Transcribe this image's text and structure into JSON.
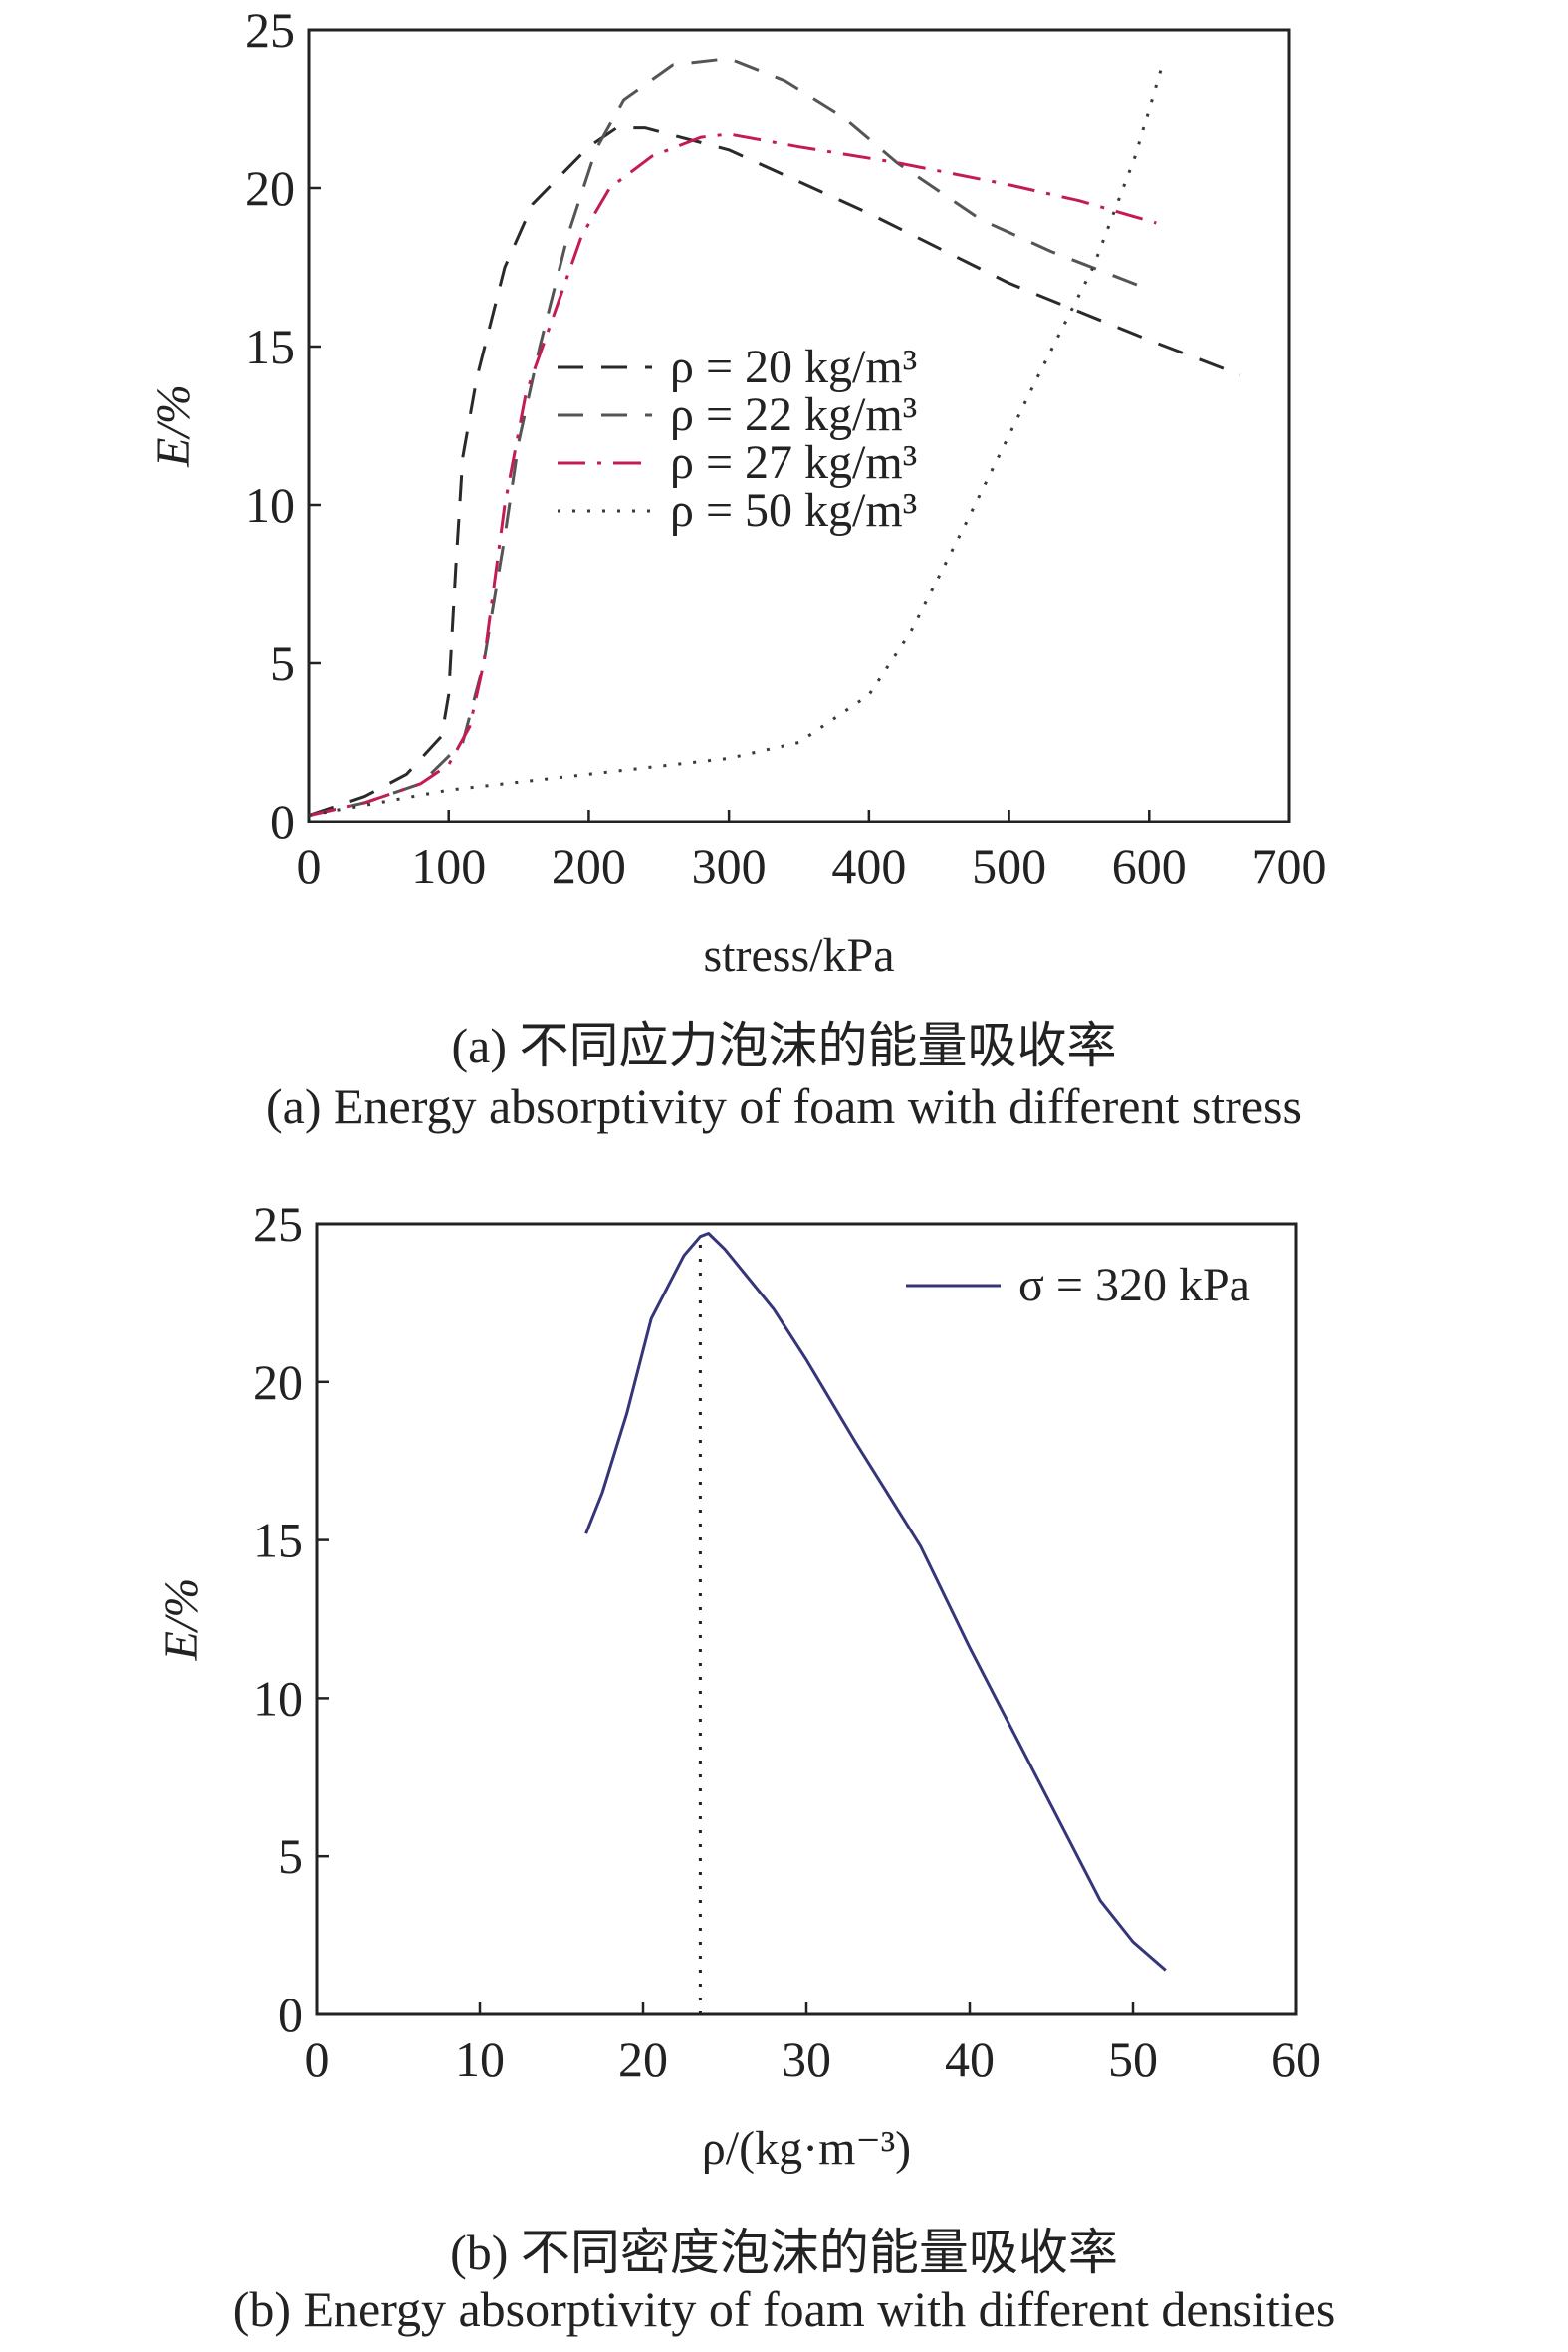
{
  "chart_data": [
    {
      "type": "line",
      "panel": "a",
      "xlabel": "stress/kPa",
      "ylabel": "E/%",
      "xlim": [
        0,
        700
      ],
      "ylim": [
        0,
        25
      ],
      "xticks": [
        "0",
        "100",
        "200",
        "300",
        "400",
        "500",
        "600",
        "700"
      ],
      "yticks": [
        "0",
        "5",
        "10",
        "15",
        "20",
        "25"
      ],
      "grid": false,
      "legend_position": "center",
      "caption_cn": "(a) 不同应力泡沫的能量吸收率",
      "caption_en": "(a) Energy absorptivity of foam with different stress",
      "series": [
        {
          "name": "ρ = 20 kg/m³",
          "style": "dashed",
          "color": "#2a2a2a",
          "points": [
            [
              0,
              0.2
            ],
            [
              40,
              0.8
            ],
            [
              70,
              1.5
            ],
            [
              95,
              2.7
            ],
            [
              100,
              4
            ],
            [
              105,
              8
            ],
            [
              110,
              11.5
            ],
            [
              120,
              14
            ],
            [
              140,
              17.5
            ],
            [
              160,
              19.5
            ],
            [
              200,
              21.3
            ],
            [
              220,
              21.9
            ],
            [
              240,
              21.9
            ],
            [
              300,
              21.2
            ],
            [
              400,
              19.2
            ],
            [
              500,
              17
            ],
            [
              600,
              15.2
            ],
            [
              665,
              14.1
            ]
          ]
        },
        {
          "name": "ρ = 22 kg/m³",
          "style": "dashed",
          "color": "#555555",
          "points": [
            [
              0,
              0.2
            ],
            [
              40,
              0.6
            ],
            [
              80,
              1.2
            ],
            [
              110,
              2.5
            ],
            [
              125,
              5
            ],
            [
              140,
              9
            ],
            [
              150,
              12
            ],
            [
              165,
              15
            ],
            [
              185,
              18.5
            ],
            [
              205,
              21.2
            ],
            [
              225,
              22.8
            ],
            [
              260,
              23.9
            ],
            [
              300,
              24.1
            ],
            [
              340,
              23.4
            ],
            [
              380,
              22.3
            ],
            [
              420,
              20.8
            ],
            [
              480,
              19
            ],
            [
              530,
              18
            ],
            [
              600,
              16.8
            ]
          ]
        },
        {
          "name": "ρ = 27 kg/m³",
          "style": "dashdot",
          "color": "#c41b58",
          "points": [
            [
              0,
              0.2
            ],
            [
              40,
              0.6
            ],
            [
              80,
              1.2
            ],
            [
              100,
              1.8
            ],
            [
              115,
              3
            ],
            [
              125,
              5
            ],
            [
              140,
              10
            ],
            [
              155,
              13.5
            ],
            [
              175,
              16
            ],
            [
              195,
              18.5
            ],
            [
              215,
              20
            ],
            [
              245,
              21
            ],
            [
              280,
              21.6
            ],
            [
              300,
              21.7
            ],
            [
              350,
              21.3
            ],
            [
              420,
              20.8
            ],
            [
              500,
              20.1
            ],
            [
              550,
              19.6
            ],
            [
              605,
              18.9
            ]
          ]
        },
        {
          "name": "ρ = 50 kg/m³",
          "style": "dotted",
          "color": "#3a3a3a",
          "points": [
            [
              0,
              0.2
            ],
            [
              100,
              1
            ],
            [
              200,
              1.5
            ],
            [
              300,
              2
            ],
            [
              350,
              2.5
            ],
            [
              400,
              4
            ],
            [
              430,
              6
            ],
            [
              470,
              9.5
            ],
            [
              520,
              14
            ],
            [
              560,
              17.5
            ],
            [
              590,
              21
            ],
            [
              610,
              24
            ]
          ]
        }
      ]
    },
    {
      "type": "line",
      "panel": "b",
      "xlabel": "ρ/(kg·m⁻³)",
      "ylabel": "E/%",
      "xlim": [
        0,
        60
      ],
      "ylim": [
        0,
        25
      ],
      "xticks": [
        "0",
        "10",
        "20",
        "30",
        "40",
        "50",
        "60"
      ],
      "yticks": [
        "0",
        "5",
        "10",
        "15",
        "20",
        "25"
      ],
      "grid": false,
      "legend_position": "top-right",
      "annotation": "vertical dotted line at ρ = 23.5",
      "caption_cn": "(b) 不同密度泡沫的能量吸收率",
      "caption_en": "(b) Energy absorptivity of foam with different densities",
      "series": [
        {
          "name": "σ = 320 kPa",
          "style": "solid",
          "color": "#35357a",
          "points": [
            [
              16.5,
              15.2
            ],
            [
              17.5,
              16.5
            ],
            [
              19,
              19
            ],
            [
              20,
              21
            ],
            [
              20.5,
              22
            ],
            [
              21.5,
              23
            ],
            [
              22.5,
              24
            ],
            [
              23.5,
              24.6
            ],
            [
              24,
              24.7
            ],
            [
              25,
              24.2
            ],
            [
              28,
              22.3
            ],
            [
              30,
              20.7
            ],
            [
              33,
              18.1
            ],
            [
              37,
              14.8
            ],
            [
              40,
              11.6
            ],
            [
              44,
              7.6
            ],
            [
              48,
              3.6
            ],
            [
              50,
              2.3
            ],
            [
              52,
              1.4
            ]
          ]
        }
      ],
      "marker_line_x": 23.5
    }
  ]
}
